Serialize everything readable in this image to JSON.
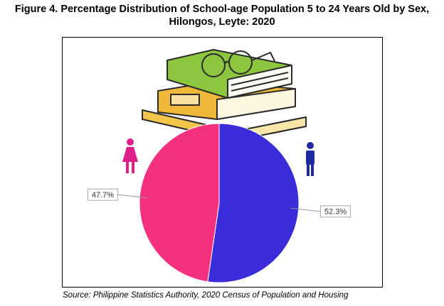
{
  "chart_data": {
    "type": "pie",
    "title": "Figure 4. Percentage Distribution of School-age Population 5 to 24 Years Old by Sex, Hilongos, Leyte: 2020",
    "values": [
      52.3,
      47.7
    ],
    "value_labels": [
      "52.3%",
      "47.7%"
    ],
    "colors": [
      "#3a2cd8",
      "#f5317f"
    ],
    "source": "Source: Philippine Statistics Authority, 2020 Census of Population and Housing"
  }
}
